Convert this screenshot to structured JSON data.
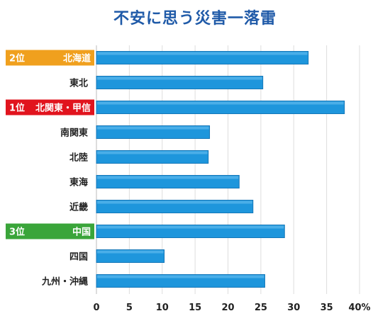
{
  "chart_data": {
    "type": "bar",
    "orientation": "horizontal",
    "title": "不安に思う災害一落雷",
    "categories": [
      "北海道",
      "東北",
      "北関東・甲信",
      "南関東",
      "北陸",
      "東海",
      "近畿",
      "中国",
      "四国",
      "九州・沖縄"
    ],
    "values": [
      32.2,
      25.3,
      37.7,
      17.2,
      17.0,
      21.7,
      23.8,
      28.6,
      10.3,
      25.6
    ],
    "rank_labels": [
      {
        "category": "北海道",
        "rank": "2位",
        "color": "#f0a01e"
      },
      {
        "category": "北関東・甲信",
        "rank": "1位",
        "color": "#e1141e"
      },
      {
        "category": "中国",
        "rank": "3位",
        "color": "#3aa53a"
      }
    ],
    "xticks": [
      "0",
      "5",
      "10",
      "15",
      "20",
      "25",
      "30",
      "35",
      "40%"
    ],
    "xlim": [
      0,
      40
    ],
    "grid": true,
    "bar_color": "#1e96dc",
    "title_color": "#1f5aa8"
  }
}
